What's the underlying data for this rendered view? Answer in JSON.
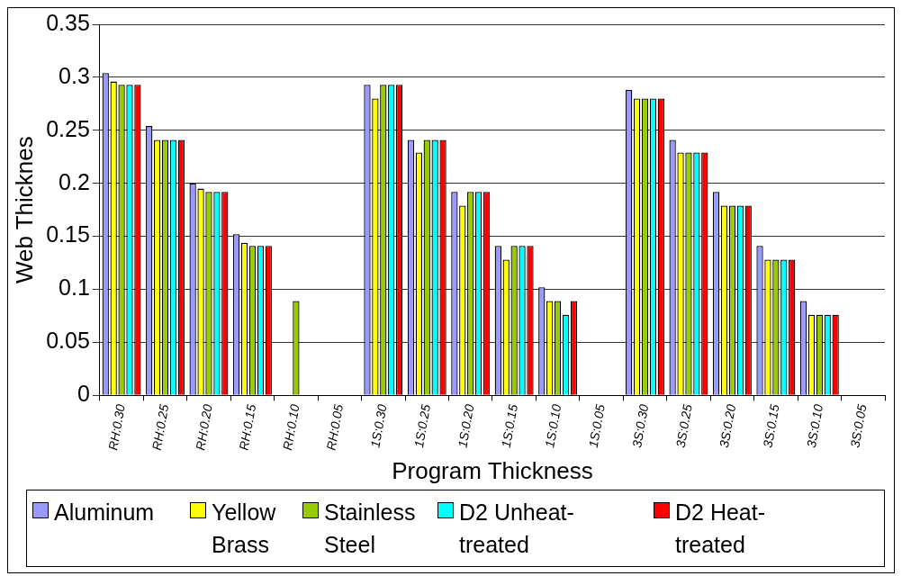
{
  "chart_data": {
    "type": "bar",
    "xlabel": "Program Thickness",
    "ylabel": "Web Thicknes",
    "categories": [
      "RH:0.30",
      "RH:0.25",
      "RH:0.20",
      "RH:0.15",
      "RH:0.10",
      "RH:0.05",
      "1S:0.30",
      "1S:0.25",
      "1S:0.20",
      "1S:0.15",
      "1S:0.10",
      "1S:0.05",
      "3S:0.30",
      "3S:0.25",
      "3S:0.20",
      "3S:0.15",
      "3S:0.10",
      "3S:0.05"
    ],
    "series": [
      {
        "name": "Aluminum",
        "color": "#9999ff",
        "values": [
          0.304,
          0.254,
          0.2,
          0.152,
          null,
          null,
          0.293,
          0.241,
          0.192,
          0.141,
          0.102,
          null,
          0.288,
          0.241,
          0.192,
          0.141,
          0.089,
          null
        ]
      },
      {
        "name": "Yellow Brass",
        "color": "#ffff00",
        "values": [
          0.296,
          0.241,
          0.195,
          0.144,
          null,
          null,
          0.28,
          0.229,
          0.179,
          0.128,
          0.089,
          null,
          0.28,
          0.229,
          0.179,
          0.128,
          0.076,
          null
        ]
      },
      {
        "name": "Stainless Steel",
        "color": "#99cc00",
        "values": [
          0.293,
          0.241,
          0.192,
          0.141,
          0.089,
          null,
          0.293,
          0.241,
          0.192,
          0.141,
          0.089,
          null,
          0.28,
          0.229,
          0.179,
          0.128,
          0.076,
          null
        ]
      },
      {
        "name": "D2 Unheat-treated",
        "color": "#00ffff",
        "values": [
          0.293,
          0.241,
          0.192,
          0.141,
          null,
          null,
          0.293,
          0.241,
          0.192,
          0.141,
          0.076,
          null,
          0.28,
          0.229,
          0.179,
          0.128,
          0.076,
          null
        ]
      },
      {
        "name": "D2 Heat-treated",
        "color": "#ff0000",
        "values": [
          0.293,
          0.241,
          0.192,
          0.141,
          null,
          null,
          0.293,
          0.241,
          0.192,
          0.141,
          0.089,
          null,
          0.28,
          0.229,
          0.179,
          0.128,
          0.076,
          null
        ]
      }
    ],
    "ylim": [
      0,
      0.35
    ],
    "yticks": [
      0,
      0.05,
      0.1,
      0.15,
      0.2,
      0.25,
      0.3,
      0.35
    ],
    "grid": "y",
    "legend": "bottom"
  }
}
